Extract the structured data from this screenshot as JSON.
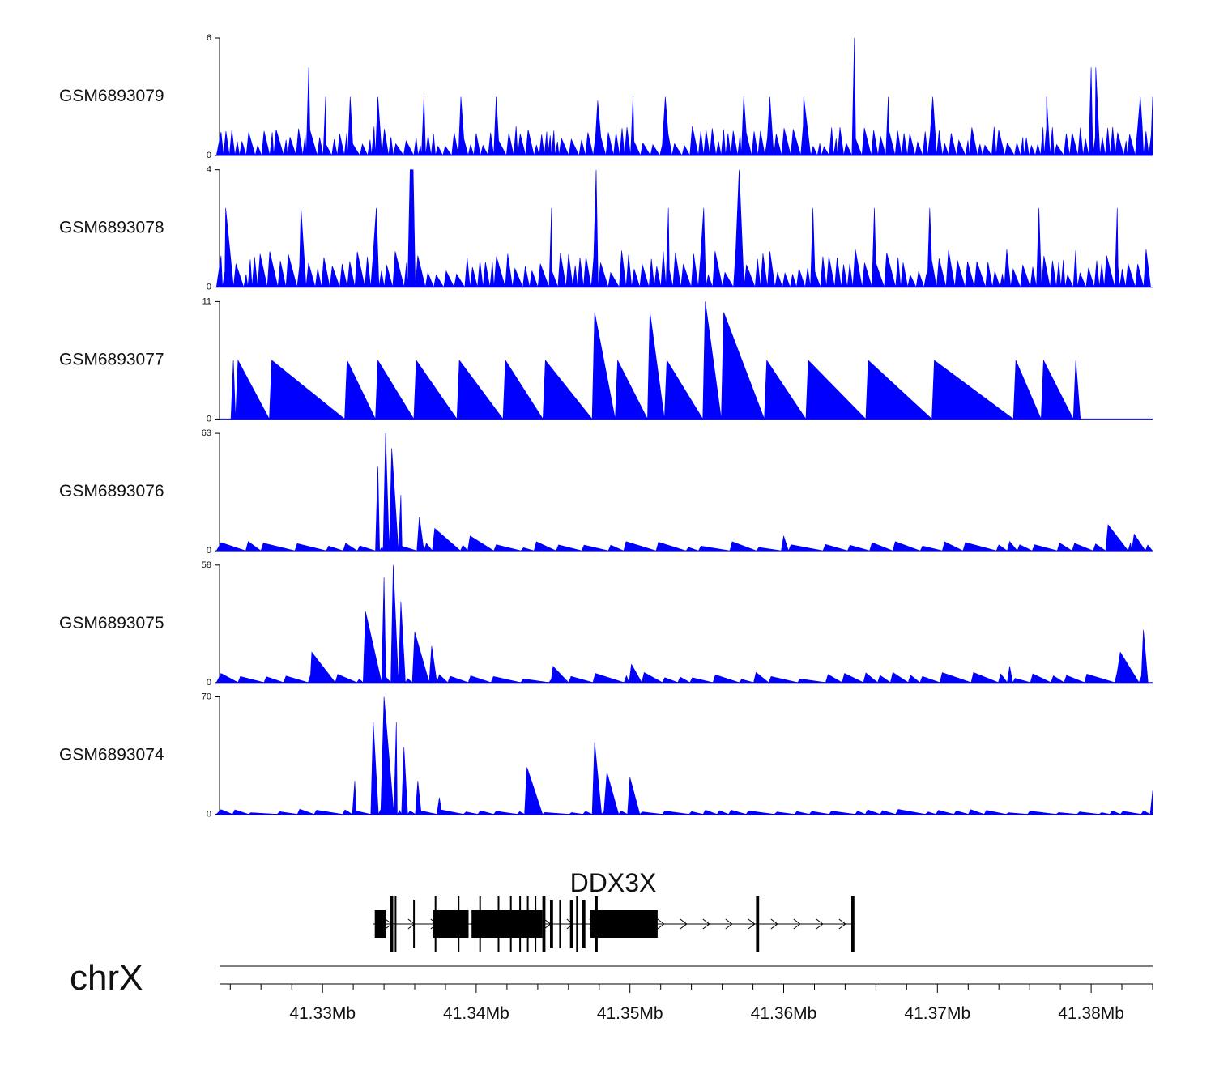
{
  "chart_data": {
    "type": "area",
    "chromosome": "chrX",
    "gene": {
      "name": "DDX3X",
      "strand": "+",
      "start": 41333300,
      "end": 41364500
    },
    "x_range": [
      41323300,
      41384000
    ],
    "x_ticks": [
      41.33,
      41.34,
      41.35,
      41.36,
      41.37,
      41.38
    ],
    "x_tick_labels": [
      "41.33Mb",
      "41.34Mb",
      "41.35Mb",
      "41.36Mb",
      "41.37Mb",
      "41.38Mb"
    ],
    "color": "#0000ff",
    "tracks": [
      {
        "name": "GSM6893079",
        "ymax": 6,
        "ymin": 0,
        "ymax_label": "6",
        "ymin_label": "0",
        "peaks": [
          [
            41329100,
            4.5
          ],
          [
            41330200,
            3
          ],
          [
            41331800,
            3
          ],
          [
            41333600,
            3
          ],
          [
            41336600,
            3
          ],
          [
            41339000,
            3
          ],
          [
            41341300,
            3
          ],
          [
            41347900,
            2.8
          ],
          [
            41350200,
            3
          ],
          [
            41352300,
            3
          ],
          [
            41357400,
            3
          ],
          [
            41359100,
            3
          ],
          [
            41361300,
            3
          ],
          [
            41364600,
            6
          ],
          [
            41366800,
            3
          ],
          [
            41369700,
            3
          ],
          [
            41377100,
            3
          ],
          [
            41380000,
            4.5
          ],
          [
            41380300,
            4.5
          ],
          [
            41383200,
            3
          ],
          [
            41384000,
            3
          ]
        ],
        "noise": 1.5,
        "spacing": 450
      },
      {
        "name": "GSM6893078",
        "ymax": 4,
        "ymin": 0,
        "ymax_label": "4",
        "ymin_label": "0",
        "peaks": [
          [
            41323700,
            2.7
          ],
          [
            41328600,
            2.7
          ],
          [
            41333500,
            2.7
          ],
          [
            41335700,
            4
          ],
          [
            41335900,
            4
          ],
          [
            41344900,
            2.7
          ],
          [
            41347800,
            4
          ],
          [
            41352500,
            2.7
          ],
          [
            41354800,
            2.7
          ],
          [
            41357100,
            4
          ],
          [
            41361900,
            2.7
          ],
          [
            41365900,
            2.7
          ],
          [
            41369500,
            2.7
          ],
          [
            41376600,
            2.7
          ],
          [
            41381700,
            2.7
          ]
        ],
        "noise": 1.3,
        "spacing": 500
      },
      {
        "name": "GSM6893077",
        "ymax": 11,
        "ymin": 0,
        "ymax_label": "11",
        "ymin_label": "0",
        "peaks": [
          [
            41324200,
            5.5
          ],
          [
            41324500,
            5.5
          ],
          [
            41326700,
            5.5
          ],
          [
            41331600,
            5.5
          ],
          [
            41333600,
            5.5
          ],
          [
            41336100,
            5.5
          ],
          [
            41338900,
            5.5
          ],
          [
            41341900,
            5.5
          ],
          [
            41344500,
            5.5
          ],
          [
            41347700,
            10
          ],
          [
            41349200,
            5.5
          ],
          [
            41351300,
            10
          ],
          [
            41352400,
            5.5
          ],
          [
            41354900,
            11
          ],
          [
            41356100,
            10
          ],
          [
            41358900,
            5.5
          ],
          [
            41361600,
            5.5
          ],
          [
            41365500,
            5.5
          ],
          [
            41369800,
            5.5
          ],
          [
            41375100,
            5.5
          ],
          [
            41376900,
            5.5
          ],
          [
            41379000,
            5.5
          ]
        ],
        "noise": 0,
        "spacing": 0
      },
      {
        "name": "GSM6893076",
        "ymax": 63,
        "ymin": 0,
        "ymax_label": "63",
        "ymin_label": "0",
        "peaks": [
          [
            41333600,
            45
          ],
          [
            41334100,
            63
          ],
          [
            41334500,
            55
          ],
          [
            41335100,
            30
          ],
          [
            41336300,
            18
          ],
          [
            41337300,
            12
          ],
          [
            41339600,
            8
          ],
          [
            41360000,
            8
          ],
          [
            41374700,
            5
          ],
          [
            41381100,
            14
          ],
          [
            41382800,
            9
          ]
        ],
        "noise": 5,
        "spacing": 1600
      },
      {
        "name": "GSM6893075",
        "ymax": 58,
        "ymin": 0,
        "ymax_label": "58",
        "ymin_label": "0",
        "peaks": [
          [
            41332800,
            35
          ],
          [
            41334000,
            52
          ],
          [
            41334600,
            58
          ],
          [
            41335100,
            40
          ],
          [
            41336000,
            25
          ],
          [
            41337100,
            18
          ],
          [
            41329300,
            15
          ],
          [
            41345000,
            8
          ],
          [
            41350100,
            9
          ],
          [
            41358200,
            5
          ],
          [
            41367100,
            5
          ],
          [
            41374700,
            8
          ],
          [
            41381900,
            15
          ],
          [
            41383400,
            26
          ]
        ],
        "noise": 5,
        "spacing": 1400
      },
      {
        "name": "GSM6893074",
        "ymax": 70,
        "ymin": 0,
        "ymax_label": "70",
        "ymin_label": "0",
        "peaks": [
          [
            41333300,
            55
          ],
          [
            41334000,
            70
          ],
          [
            41334800,
            55
          ],
          [
            41335300,
            40
          ],
          [
            41336200,
            20
          ],
          [
            41337600,
            10
          ],
          [
            41332100,
            20
          ],
          [
            41343300,
            28
          ],
          [
            41347700,
            43
          ],
          [
            41348500,
            25
          ],
          [
            41350000,
            22
          ],
          [
            41384000,
            14
          ]
        ],
        "noise": 3,
        "spacing": 1300
      }
    ]
  }
}
